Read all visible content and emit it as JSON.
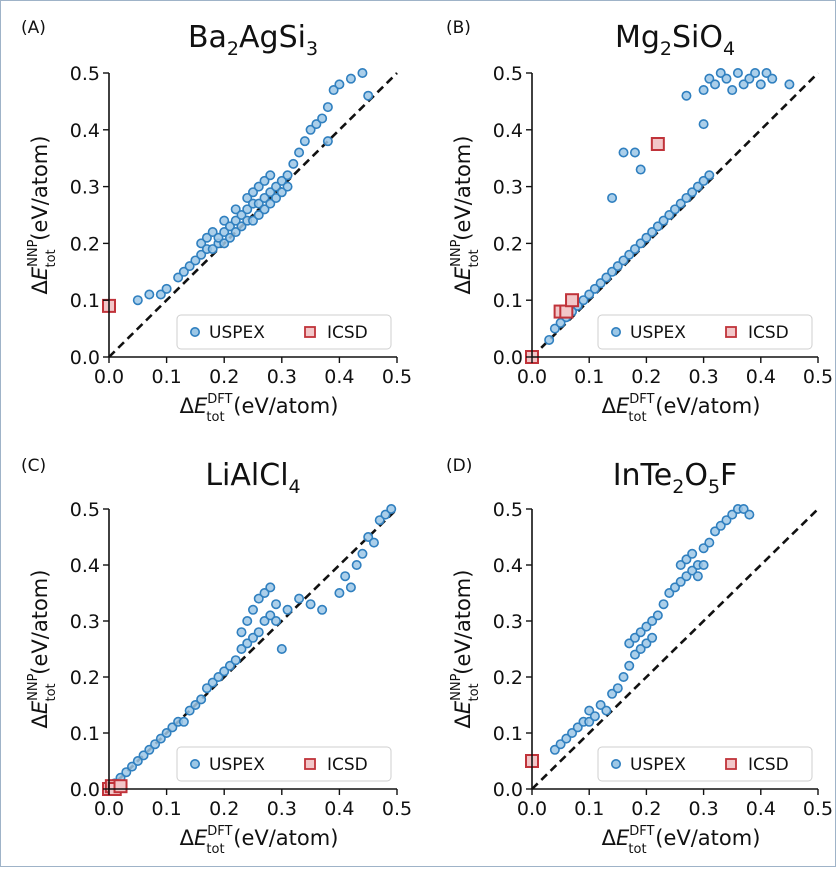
{
  "chart_data": [
    {
      "type": "scatter",
      "panel_label": "(A)",
      "title_parts": [
        {
          "t": "Ba"
        },
        {
          "t": "2",
          "sub": true
        },
        {
          "t": "AgSi"
        },
        {
          "t": "3",
          "sub": true
        }
      ],
      "xlabel": {
        "sym": "ΔE",
        "sup": "DFT",
        "sub": "tot",
        "unit": "(eV/atom)"
      },
      "ylabel": {
        "sym": "ΔE",
        "sup": "NNP",
        "sub": "tot",
        "unit": "(eV/atom)"
      },
      "xlim": [
        0,
        0.5
      ],
      "ylim": [
        0,
        0.5
      ],
      "xticks": [
        "0.0",
        "0.1",
        "0.2",
        "0.3",
        "0.4",
        "0.5"
      ],
      "yticks": [
        "0.0",
        "0.1",
        "0.2",
        "0.3",
        "0.4",
        "0.5"
      ],
      "reference_line": "y = x (dashed)",
      "legend": {
        "position": "lower-right",
        "entries": [
          "USPEX",
          "ICSD"
        ]
      },
      "series": [
        {
          "name": "USPEX",
          "marker": "circle",
          "color": "#2f7fbf",
          "x": [
            0.05,
            0.07,
            0.09,
            0.1,
            0.12,
            0.13,
            0.14,
            0.15,
            0.16,
            0.16,
            0.17,
            0.17,
            0.18,
            0.18,
            0.19,
            0.19,
            0.2,
            0.2,
            0.2,
            0.21,
            0.21,
            0.22,
            0.22,
            0.22,
            0.23,
            0.23,
            0.24,
            0.24,
            0.24,
            0.25,
            0.25,
            0.25,
            0.26,
            0.26,
            0.26,
            0.27,
            0.27,
            0.27,
            0.28,
            0.28,
            0.28,
            0.29,
            0.29,
            0.3,
            0.3,
            0.31,
            0.31,
            0.32,
            0.33,
            0.34,
            0.35,
            0.36,
            0.37,
            0.38,
            0.38,
            0.39,
            0.4,
            0.42,
            0.44,
            0.45
          ],
          "y": [
            0.1,
            0.11,
            0.11,
            0.12,
            0.14,
            0.15,
            0.16,
            0.17,
            0.18,
            0.2,
            0.19,
            0.21,
            0.19,
            0.22,
            0.2,
            0.21,
            0.2,
            0.22,
            0.24,
            0.21,
            0.23,
            0.22,
            0.24,
            0.26,
            0.23,
            0.25,
            0.24,
            0.26,
            0.28,
            0.24,
            0.27,
            0.29,
            0.25,
            0.27,
            0.3,
            0.26,
            0.28,
            0.31,
            0.27,
            0.29,
            0.32,
            0.28,
            0.3,
            0.29,
            0.31,
            0.3,
            0.32,
            0.34,
            0.36,
            0.38,
            0.4,
            0.41,
            0.42,
            0.38,
            0.44,
            0.47,
            0.48,
            0.49,
            0.5,
            0.46
          ]
        },
        {
          "name": "ICSD",
          "marker": "square",
          "color": "#c0333a",
          "x": [
            0.0
          ],
          "y": [
            0.09
          ]
        }
      ]
    },
    {
      "type": "scatter",
      "panel_label": "(B)",
      "title_parts": [
        {
          "t": "Mg"
        },
        {
          "t": "2",
          "sub": true
        },
        {
          "t": "SiO"
        },
        {
          "t": "4",
          "sub": true
        }
      ],
      "xlabel": {
        "sym": "ΔE",
        "sup": "DFT",
        "sub": "tot",
        "unit": "(eV/atom)"
      },
      "ylabel": {
        "sym": "ΔE",
        "sup": "NNP",
        "sub": "tot",
        "unit": "(eV/atom)"
      },
      "xlim": [
        0,
        0.5
      ],
      "ylim": [
        0,
        0.5
      ],
      "xticks": [
        "0.0",
        "0.1",
        "0.2",
        "0.3",
        "0.4",
        "0.5"
      ],
      "yticks": [
        "0.0",
        "0.1",
        "0.2",
        "0.3",
        "0.4",
        "0.5"
      ],
      "reference_line": "y = x (dashed)",
      "legend": {
        "position": "lower-right",
        "entries": [
          "USPEX",
          "ICSD"
        ]
      },
      "series": [
        {
          "name": "USPEX",
          "marker": "circle",
          "color": "#2f7fbf",
          "x": [
            0.03,
            0.04,
            0.05,
            0.06,
            0.07,
            0.08,
            0.09,
            0.1,
            0.11,
            0.12,
            0.13,
            0.14,
            0.15,
            0.16,
            0.17,
            0.18,
            0.19,
            0.2,
            0.21,
            0.22,
            0.23,
            0.24,
            0.25,
            0.26,
            0.27,
            0.28,
            0.29,
            0.3,
            0.31,
            0.14,
            0.16,
            0.18,
            0.19,
            0.27,
            0.3,
            0.3,
            0.31,
            0.32,
            0.33,
            0.34,
            0.35,
            0.36,
            0.37,
            0.38,
            0.39,
            0.4,
            0.41,
            0.42,
            0.45
          ],
          "y": [
            0.03,
            0.05,
            0.06,
            0.07,
            0.08,
            0.09,
            0.1,
            0.11,
            0.12,
            0.13,
            0.14,
            0.15,
            0.16,
            0.17,
            0.18,
            0.19,
            0.2,
            0.21,
            0.22,
            0.23,
            0.24,
            0.25,
            0.26,
            0.27,
            0.28,
            0.29,
            0.3,
            0.31,
            0.32,
            0.28,
            0.36,
            0.36,
            0.33,
            0.46,
            0.41,
            0.47,
            0.49,
            0.48,
            0.5,
            0.49,
            0.47,
            0.5,
            0.48,
            0.49,
            0.5,
            0.48,
            0.5,
            0.49,
            0.48
          ]
        },
        {
          "name": "ICSD",
          "marker": "square",
          "color": "#c0333a",
          "x": [
            0.0,
            0.05,
            0.06,
            0.07,
            0.22
          ],
          "y": [
            0.0,
            0.08,
            0.08,
            0.1,
            0.375
          ]
        }
      ]
    },
    {
      "type": "scatter",
      "panel_label": "(C)",
      "title_parts": [
        {
          "t": "LiAlCl"
        },
        {
          "t": "4",
          "sub": true
        }
      ],
      "xlabel": {
        "sym": "ΔE",
        "sup": "DFT",
        "sub": "tot",
        "unit": "(eV/atom)"
      },
      "ylabel": {
        "sym": "ΔE",
        "sup": "NNP",
        "sub": "tot",
        "unit": "(eV/atom)"
      },
      "xlim": [
        0,
        0.5
      ],
      "ylim": [
        0,
        0.5
      ],
      "xticks": [
        "0.0",
        "0.1",
        "0.2",
        "0.3",
        "0.4",
        "0.5"
      ],
      "yticks": [
        "0.0",
        "0.1",
        "0.2",
        "0.3",
        "0.4",
        "0.5"
      ],
      "reference_line": "y = x (dashed)",
      "legend": {
        "position": "lower-right",
        "entries": [
          "USPEX",
          "ICSD"
        ]
      },
      "series": [
        {
          "name": "USPEX",
          "marker": "circle",
          "color": "#2f7fbf",
          "x": [
            0.01,
            0.02,
            0.03,
            0.04,
            0.05,
            0.06,
            0.07,
            0.08,
            0.09,
            0.1,
            0.11,
            0.12,
            0.13,
            0.14,
            0.15,
            0.16,
            0.17,
            0.18,
            0.19,
            0.2,
            0.21,
            0.22,
            0.23,
            0.23,
            0.24,
            0.24,
            0.25,
            0.25,
            0.26,
            0.26,
            0.27,
            0.27,
            0.28,
            0.28,
            0.29,
            0.29,
            0.3,
            0.31,
            0.33,
            0.35,
            0.37,
            0.4,
            0.41,
            0.42,
            0.43,
            0.44,
            0.45,
            0.46,
            0.47,
            0.48,
            0.49
          ],
          "y": [
            0.01,
            0.02,
            0.03,
            0.04,
            0.05,
            0.06,
            0.07,
            0.08,
            0.09,
            0.1,
            0.11,
            0.12,
            0.12,
            0.14,
            0.15,
            0.16,
            0.18,
            0.19,
            0.2,
            0.21,
            0.22,
            0.23,
            0.25,
            0.28,
            0.26,
            0.3,
            0.27,
            0.32,
            0.28,
            0.34,
            0.3,
            0.35,
            0.31,
            0.36,
            0.3,
            0.33,
            0.25,
            0.32,
            0.34,
            0.33,
            0.32,
            0.35,
            0.38,
            0.36,
            0.4,
            0.42,
            0.45,
            0.44,
            0.48,
            0.49,
            0.5
          ]
        },
        {
          "name": "ICSD",
          "marker": "square",
          "color": "#c0333a",
          "x": [
            0.0,
            0.005,
            0.01,
            0.02
          ],
          "y": [
            0.0,
            0.005,
            0.0,
            0.005
          ]
        }
      ]
    },
    {
      "type": "scatter",
      "panel_label": "(D)",
      "title_parts": [
        {
          "t": "InTe"
        },
        {
          "t": "2",
          "sub": true
        },
        {
          "t": "O"
        },
        {
          "t": "5",
          "sub": true
        },
        {
          "t": "F"
        }
      ],
      "xlabel": {
        "sym": "ΔE",
        "sup": "DFT",
        "sub": "tot",
        "unit": "(eV/atom)"
      },
      "ylabel": {
        "sym": "ΔE",
        "sup": "NNP",
        "sub": "tot",
        "unit": "(eV/atom)"
      },
      "xlim": [
        0,
        0.5
      ],
      "ylim": [
        0,
        0.5
      ],
      "xticks": [
        "0.0",
        "0.1",
        "0.2",
        "0.3",
        "0.4",
        "0.5"
      ],
      "yticks": [
        "0.0",
        "0.1",
        "0.2",
        "0.3",
        "0.4",
        "0.5"
      ],
      "reference_line": "y = x (dashed)",
      "legend": {
        "position": "lower-right",
        "entries": [
          "USPEX",
          "ICSD"
        ]
      },
      "series": [
        {
          "name": "USPEX",
          "marker": "circle",
          "color": "#2f7fbf",
          "x": [
            0.04,
            0.05,
            0.06,
            0.07,
            0.08,
            0.09,
            0.1,
            0.1,
            0.11,
            0.12,
            0.13,
            0.14,
            0.15,
            0.16,
            0.17,
            0.17,
            0.18,
            0.18,
            0.19,
            0.19,
            0.2,
            0.2,
            0.21,
            0.21,
            0.22,
            0.23,
            0.24,
            0.25,
            0.26,
            0.26,
            0.27,
            0.27,
            0.28,
            0.28,
            0.29,
            0.29,
            0.3,
            0.3,
            0.31,
            0.32,
            0.33,
            0.34,
            0.35,
            0.36,
            0.37,
            0.38
          ],
          "y": [
            0.07,
            0.08,
            0.09,
            0.1,
            0.11,
            0.12,
            0.12,
            0.14,
            0.13,
            0.15,
            0.14,
            0.17,
            0.18,
            0.2,
            0.22,
            0.26,
            0.24,
            0.27,
            0.25,
            0.28,
            0.26,
            0.29,
            0.27,
            0.3,
            0.31,
            0.33,
            0.35,
            0.36,
            0.37,
            0.4,
            0.38,
            0.41,
            0.39,
            0.42,
            0.38,
            0.4,
            0.4,
            0.43,
            0.44,
            0.46,
            0.47,
            0.48,
            0.49,
            0.5,
            0.5,
            0.49
          ]
        },
        {
          "name": "ICSD",
          "marker": "square",
          "color": "#c0333a",
          "x": [
            0.0
          ],
          "y": [
            0.05
          ]
        }
      ]
    }
  ]
}
